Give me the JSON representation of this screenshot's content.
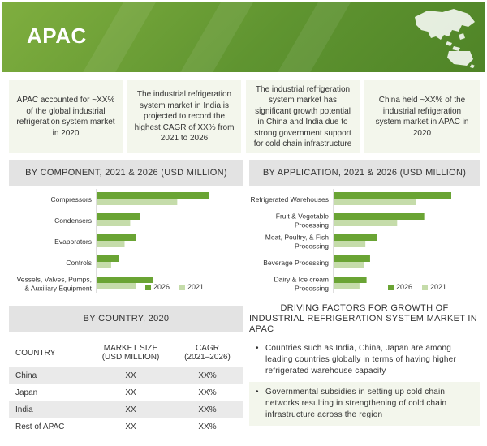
{
  "header": {
    "title": "APAC"
  },
  "info_boxes": [
    "APAC accounted for ~XX% of the global industrial refrigeration system market in 2020",
    "The industrial refrigeration system market in India is projected to record the highest CAGR of XX% from 2021 to 2026",
    "The industrial refrigeration system market has significant growth potential in China and India due to strong government support for cold chain infrastructure",
    "China held ~XX% of the industrial refrigeration system market in APAC in 2020"
  ],
  "panels": {
    "component_title": "BY COMPONENT, 2021 & 2026 (USD MILLION)",
    "application_title": "BY APPLICATION, 2021 & 2026 (USD MILLION)",
    "country_title": "BY COUNTRY, 2020",
    "drivers_title_line1": "DRIVING FACTORS FOR GROWTH OF",
    "drivers_title_line2": "INDUSTRIAL REFRIGERATION SYSTEM MARKET IN APAC"
  },
  "colors": {
    "series_2026": "#6aa434",
    "series_2021": "#c5dcaa",
    "header": "#5f9430"
  },
  "chart_data": [
    {
      "type": "bar",
      "orientation": "horizontal",
      "title": "BY COMPONENT, 2021 & 2026 (USD MILLION)",
      "categories": [
        "Compressors",
        "Condensers",
        "Evaporators",
        "Controls",
        "Vessels, Valves, Pumps, & Auxiliary Equipment"
      ],
      "category_lines": [
        [
          "Compressors"
        ],
        [
          "Condensers"
        ],
        [
          "Evaporators"
        ],
        [
          "Controls"
        ],
        [
          "Vessels, Valves, Pumps,",
          "& Auxiliary Equipment"
        ]
      ],
      "series": [
        {
          "name": "2026",
          "values": [
            100,
            39,
            35,
            20,
            50
          ]
        },
        {
          "name": "2021",
          "values": [
            72,
            30,
            25,
            13,
            35
          ]
        }
      ],
      "xlim": [
        0,
        100
      ],
      "legend": "bottom-right",
      "axis_labels_shown": false
    },
    {
      "type": "bar",
      "orientation": "horizontal",
      "title": "BY APPLICATION, 2021 & 2026 (USD MILLION)",
      "categories": [
        "Refrigerated Warehouses",
        "Fruit & Vegetable Processing",
        "Meat, Poultry, & Fish Processing",
        "Beverage Processing",
        "Dairy & Ice cream Processing"
      ],
      "category_lines": [
        [
          "Refrigerated Warehouses"
        ],
        [
          "Fruit & Vegetable",
          "Processing"
        ],
        [
          "Meat, Poultry, & Fish",
          "Processing"
        ],
        [
          "Beverage Processing"
        ],
        [
          "Dairy & Ice cream",
          "Processing"
        ]
      ],
      "series": [
        {
          "name": "2026",
          "values": [
            100,
            77,
            37,
            31,
            28
          ]
        },
        {
          "name": "2021",
          "values": [
            70,
            54,
            27,
            26,
            22
          ]
        }
      ],
      "xlim": [
        0,
        100
      ],
      "legend": "bottom-right",
      "axis_labels_shown": false
    },
    {
      "type": "table",
      "title": "BY COUNTRY, 2020",
      "columns": [
        "COUNTRY",
        "MARKET SIZE (USD MILLION)",
        "CAGR (2021–2026)"
      ],
      "rows": [
        [
          "China",
          "XX",
          "XX%"
        ],
        [
          "Japan",
          "XX",
          "XX%"
        ],
        [
          "India",
          "XX",
          "XX%"
        ],
        [
          "Rest of APAC",
          "XX",
          "XX%"
        ]
      ]
    }
  ],
  "table": {
    "head": {
      "country": "COUNTRY",
      "size_1": "MARKET SIZE",
      "size_2": "(USD MILLION)",
      "cagr_1": "CAGR",
      "cagr_2": "(2021–2026)"
    },
    "rows": [
      {
        "country": "China",
        "size": "XX",
        "cagr": "XX%"
      },
      {
        "country": "Japan",
        "size": "XX",
        "cagr": "XX%"
      },
      {
        "country": "India",
        "size": "XX",
        "cagr": "XX%"
      },
      {
        "country": "Rest of APAC",
        "size": "XX",
        "cagr": "XX%"
      }
    ]
  },
  "drivers": [
    "Countries such as India, China, Japan are among leading countries globally in terms of having higher refrigerated warehouse capacity",
    "Governmental subsidies in setting up cold chain networks resulting in strengthening of cold chain infrastructure across the region"
  ],
  "bullet_char": "•"
}
